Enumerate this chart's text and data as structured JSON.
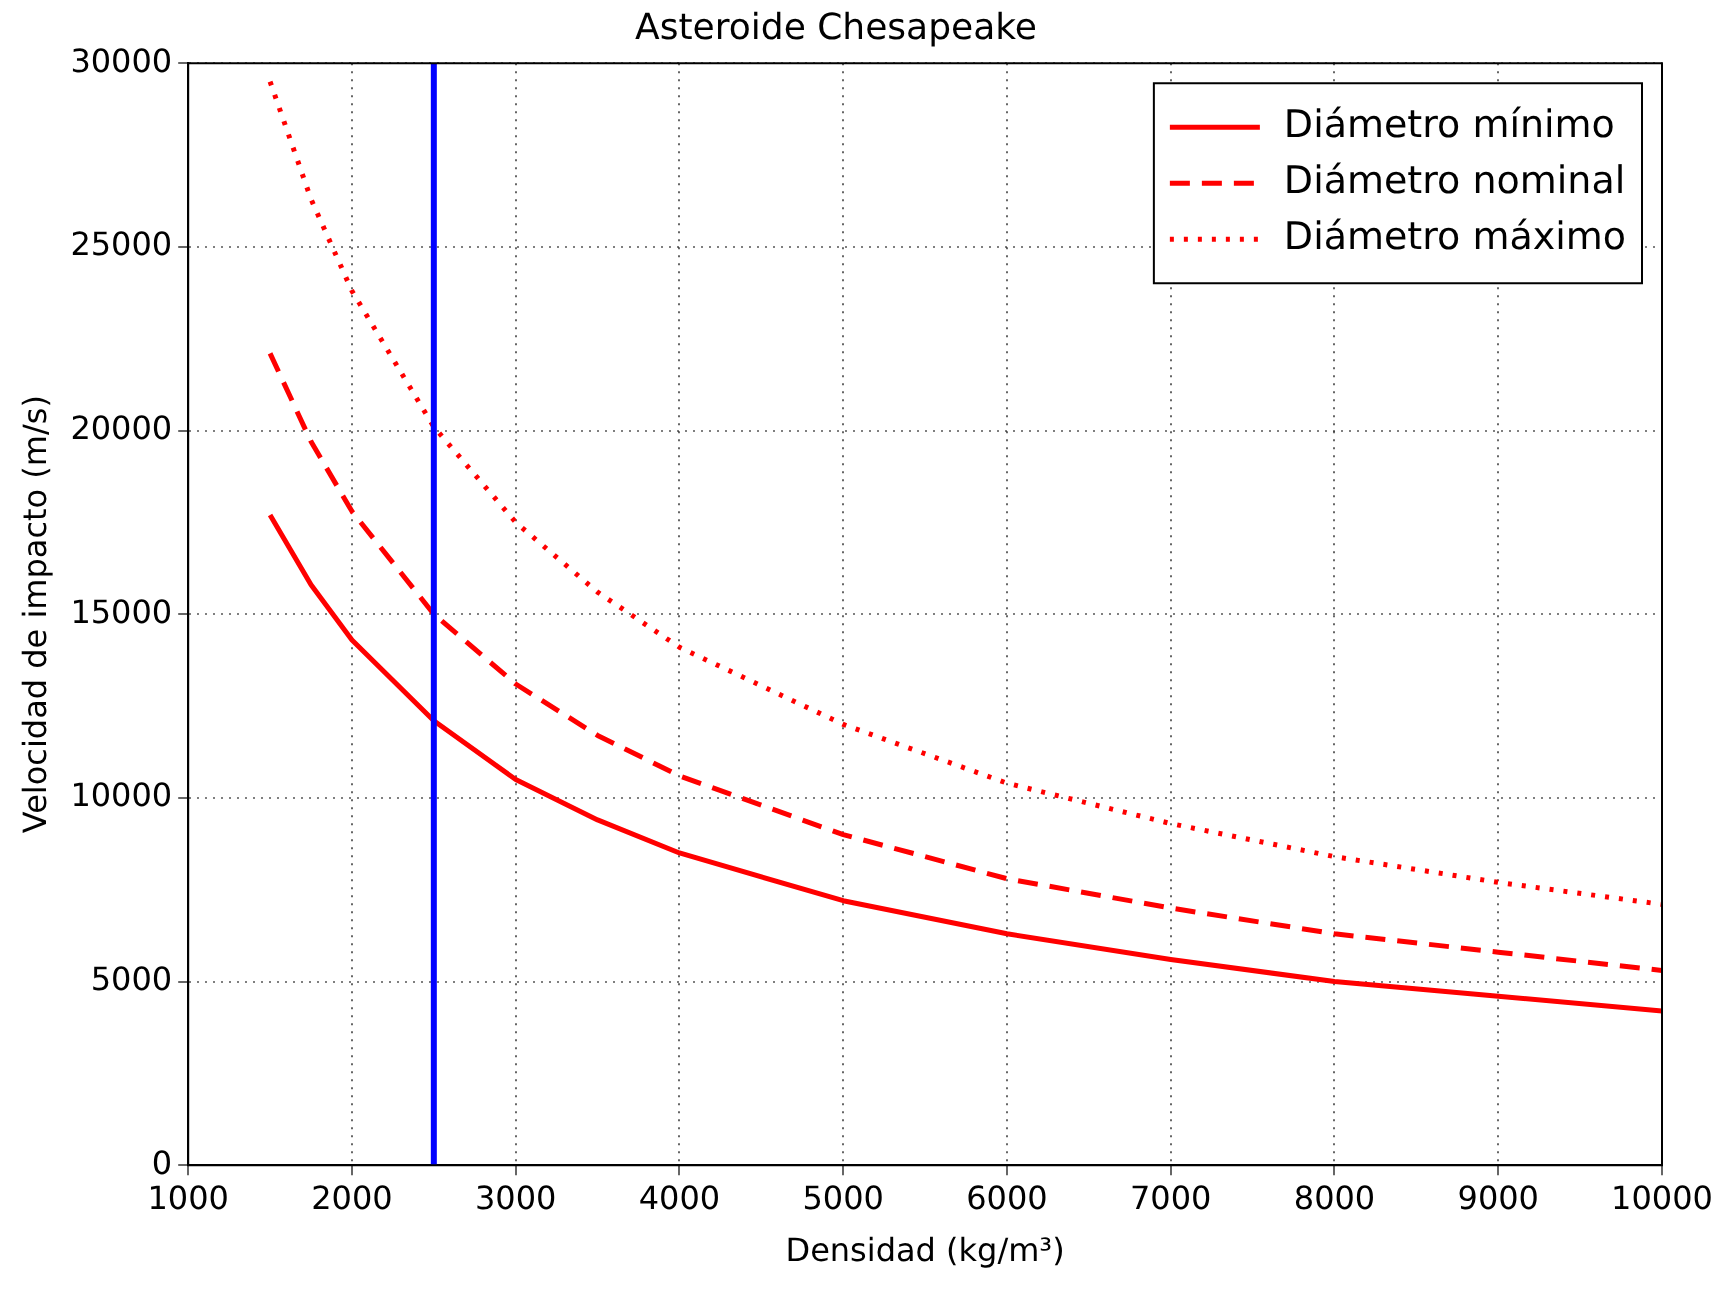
{
  "chart_data": {
    "type": "line",
    "title": "Asteroide Chesapeake",
    "xlabel": "Densidad (kg/m³)",
    "ylabel": "Velocidad de impacto (m/s)",
    "x": [
      1500,
      1750,
      2000,
      2500,
      3000,
      3500,
      4000,
      5000,
      6000,
      7000,
      8000,
      9000,
      10000
    ],
    "series": [
      {
        "name": "Diámetro mínimo",
        "color": "#ff0000",
        "line_style": "solid",
        "values": [
          17700,
          15800,
          14300,
          12100,
          10500,
          9400,
          8500,
          7200,
          6300,
          5600,
          5000,
          4600,
          4200
        ]
      },
      {
        "name": "Diámetro nominal",
        "color": "#ff0000",
        "line_style": "dashed",
        "values": [
          22100,
          19700,
          17800,
          15000,
          13100,
          11700,
          10600,
          9000,
          7800,
          7000,
          6300,
          5800,
          5300
        ]
      },
      {
        "name": "Diámetro máximo",
        "color": "#ff0000",
        "line_style": "dotted",
        "values": [
          29500,
          26300,
          23800,
          20100,
          17500,
          15600,
          14100,
          12000,
          10400,
          9300,
          8400,
          7700,
          7100
        ]
      }
    ],
    "xlim": [
      1000,
      10000
    ],
    "xticks": [
      1000,
      2000,
      3000,
      4000,
      5000,
      6000,
      7000,
      8000,
      9000,
      10000
    ],
    "ylim": [
      0,
      30000
    ],
    "yticks": [
      0,
      5000,
      10000,
      15000,
      20000,
      25000,
      30000
    ],
    "ref_lines": [
      {
        "axis": "x",
        "value": 2500,
        "color": "#0000ff"
      }
    ],
    "grid": true,
    "legend": "top right",
    "marker": "none"
  }
}
